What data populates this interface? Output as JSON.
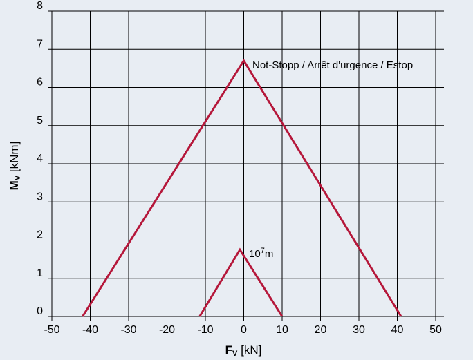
{
  "chart_data": {
    "type": "line",
    "xlim": [
      -50,
      50
    ],
    "ylim": [
      0,
      8
    ],
    "x_ticks": [
      -50,
      -40,
      -30,
      -20,
      -10,
      0,
      10,
      20,
      30,
      40,
      50
    ],
    "x_tick_labels": [
      "-50",
      "-40",
      "-30",
      "-20",
      "-10",
      "0",
      "10",
      "20",
      "30",
      "40",
      "50"
    ],
    "y_ticks": [
      0,
      1,
      2,
      3,
      4,
      5,
      6,
      7,
      8
    ],
    "y_tick_labels": [
      "0",
      "1",
      "2",
      "3",
      "4",
      "5",
      "6",
      "7",
      "8"
    ],
    "grid": true,
    "xlabel_main": "F",
    "xlabel_sub": "V",
    "xlabel_unit": " [kN]",
    "ylabel_main": "M",
    "ylabel_sub": "V",
    "ylabel_unit": " [kNm]",
    "series": [
      {
        "x": [
          -42,
          0,
          41
        ],
        "y": [
          0,
          6.7,
          0
        ],
        "label": "Not-Stopp / Arrêt d'urgence / Estop"
      },
      {
        "x": [
          -11.5,
          -1,
          10
        ],
        "y": [
          0,
          1.75,
          0
        ],
        "label_base": "10",
        "label_sup": "7",
        "label_unit": "m"
      }
    ],
    "colors": {
      "series": "#b5173a",
      "background": "#e8edf3",
      "grid": "#000000"
    }
  }
}
